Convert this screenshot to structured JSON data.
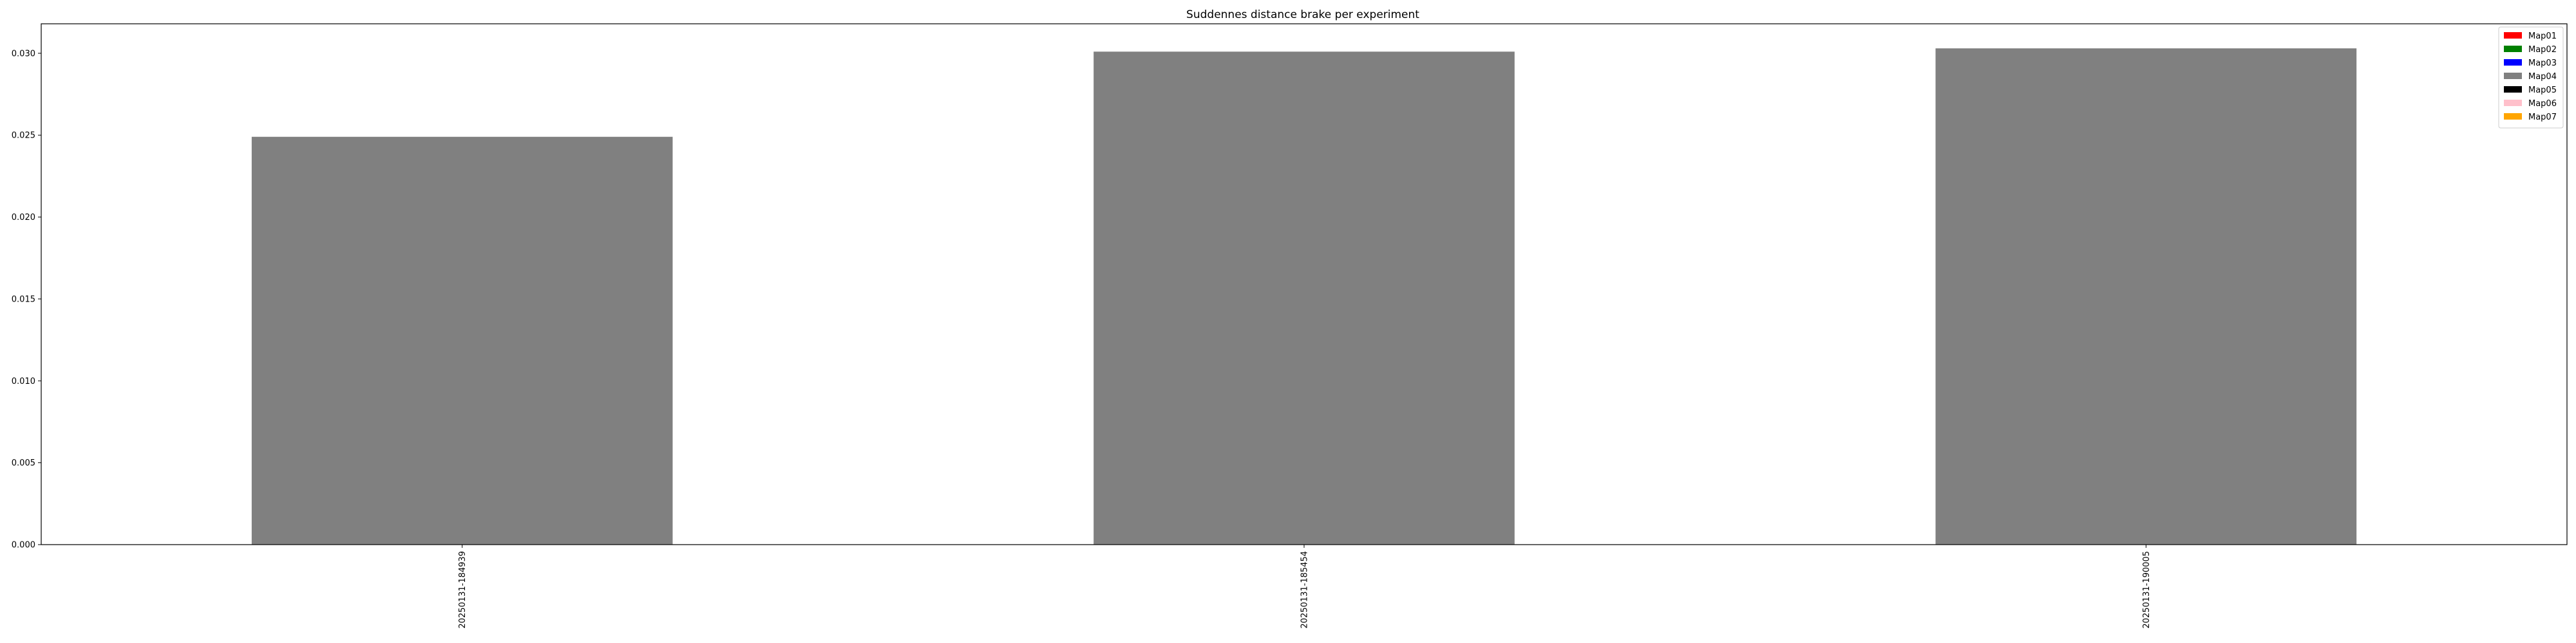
{
  "chart_data": {
    "type": "bar",
    "title": "Suddennes distance brake per experiment",
    "xlabel": "",
    "ylabel": "",
    "categories": [
      "20250131-184939",
      "20250131-185454",
      "20250131-190005"
    ],
    "values": [
      0.0249,
      0.0301,
      0.0303
    ],
    "bar_color": "#808080",
    "ylim": [
      0,
      0.0318
    ],
    "yticks": [
      0.0,
      0.005,
      0.01,
      0.015,
      0.02,
      0.025,
      0.03
    ],
    "ytick_labels": [
      "0.000",
      "0.005",
      "0.010",
      "0.015",
      "0.020",
      "0.025",
      "0.030"
    ],
    "grid": false,
    "legend_position": "top-right",
    "legend": [
      {
        "label": "Map01",
        "color": "#ff0000"
      },
      {
        "label": "Map02",
        "color": "#008000"
      },
      {
        "label": "Map03",
        "color": "#0000ff"
      },
      {
        "label": "Map04",
        "color": "#808080"
      },
      {
        "label": "Map05",
        "color": "#000000"
      },
      {
        "label": "Map06",
        "color": "#ffc0cb"
      },
      {
        "label": "Map07",
        "color": "#ffa500"
      }
    ]
  }
}
